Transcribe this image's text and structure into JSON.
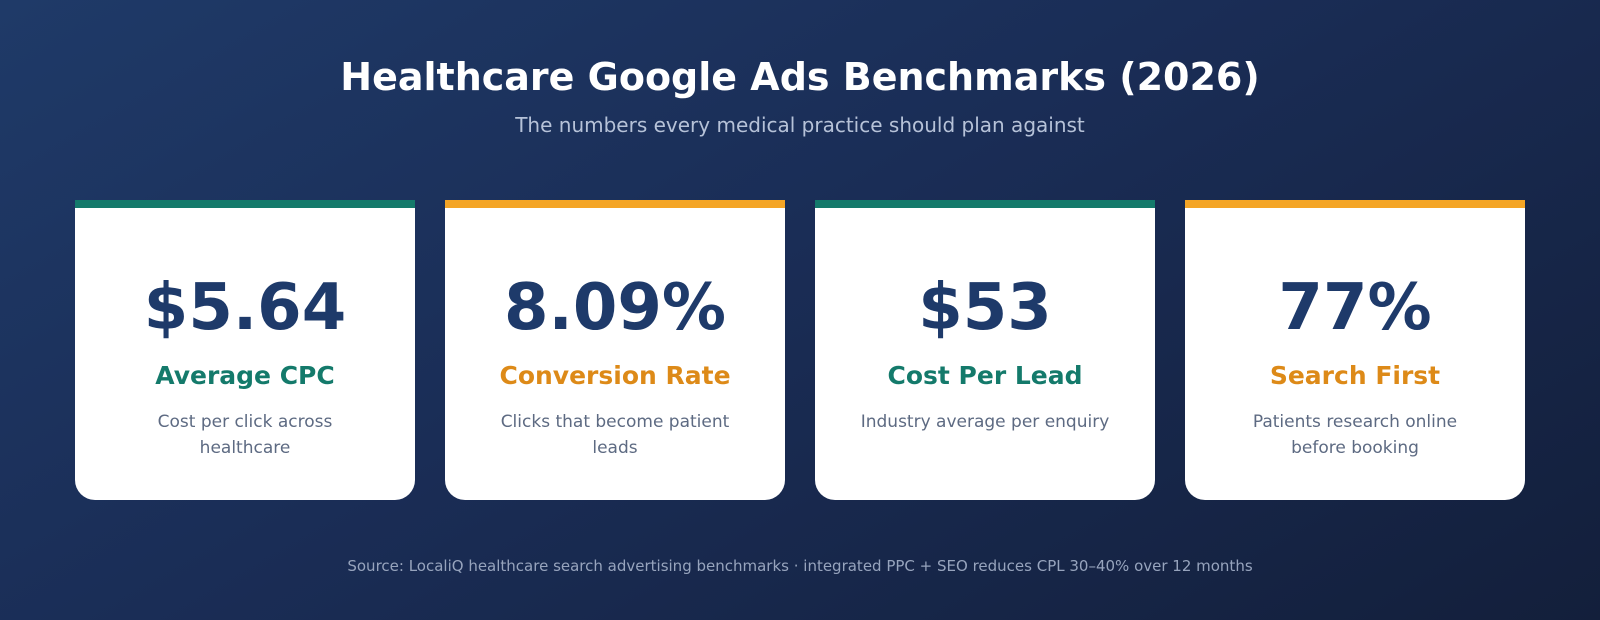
{
  "header": {
    "title": "Healthcare Google Ads Benchmarks (2026)",
    "subtitle": "The numbers every medical practice should plan against"
  },
  "colors": {
    "teal": "#147a6b",
    "orange": "#f4a526",
    "label_orange": "#dd8a18",
    "navy": "#1e3a6a"
  },
  "cards": [
    {
      "value": "$5.64",
      "label": "Average CPC",
      "description": "Cost per click across healthcare",
      "accent": "#147a6b",
      "label_color": "#147a6b"
    },
    {
      "value": "8.09%",
      "label": "Conversion Rate",
      "description": "Clicks that become patient leads",
      "accent": "#f4a526",
      "label_color": "#dd8a18"
    },
    {
      "value": "$53",
      "label": "Cost Per Lead",
      "description": "Industry average per enquiry",
      "accent": "#147a6b",
      "label_color": "#147a6b"
    },
    {
      "value": "77%",
      "label": "Search First",
      "description": "Patients research online before booking",
      "accent": "#f4a526",
      "label_color": "#dd8a18"
    }
  ],
  "footer": {
    "source": "Source: LocaliQ healthcare search advertising benchmarks · integrated PPC + SEO reduces CPL 30–40% over 12 months"
  }
}
